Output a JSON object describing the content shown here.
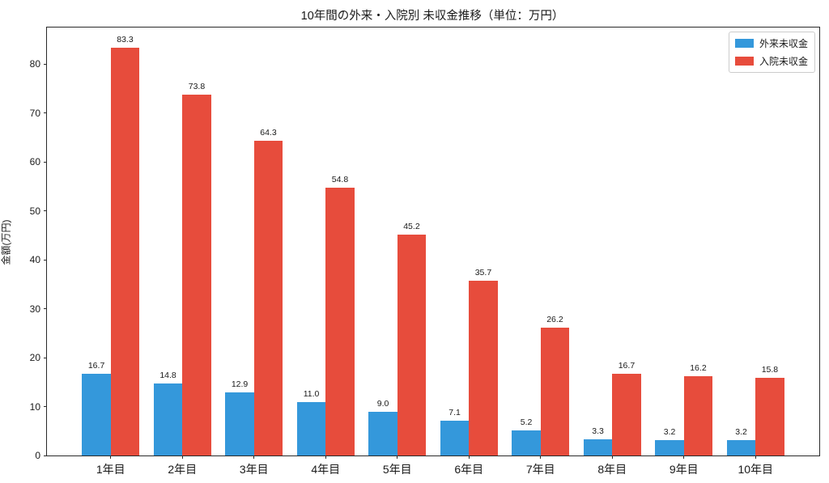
{
  "chart_data": {
    "type": "bar",
    "title": "10年間の外来・入院別 未収金推移（単位：万円）",
    "xlabel": "",
    "ylabel": "金額(万円)",
    "categories": [
      "1年目",
      "2年目",
      "3年目",
      "4年目",
      "5年目",
      "6年目",
      "7年目",
      "8年目",
      "9年目",
      "10年目"
    ],
    "series": [
      {
        "name": "外来未収金",
        "color": "#3498db",
        "values": [
          16.7,
          14.8,
          12.9,
          11.0,
          9.0,
          7.1,
          5.2,
          3.3,
          3.2,
          3.2
        ]
      },
      {
        "name": "入院未収金",
        "color": "#e74c3c",
        "values": [
          83.3,
          73.8,
          64.3,
          54.8,
          45.2,
          35.7,
          26.2,
          16.7,
          16.2,
          15.8
        ]
      }
    ],
    "yticks": [
      0,
      10,
      20,
      30,
      40,
      50,
      60,
      70,
      80
    ],
    "ylim": [
      0,
      87.5
    ],
    "grid": false,
    "legend_position": "upper right",
    "value_labels": true,
    "value_label_format": "one_decimal"
  }
}
